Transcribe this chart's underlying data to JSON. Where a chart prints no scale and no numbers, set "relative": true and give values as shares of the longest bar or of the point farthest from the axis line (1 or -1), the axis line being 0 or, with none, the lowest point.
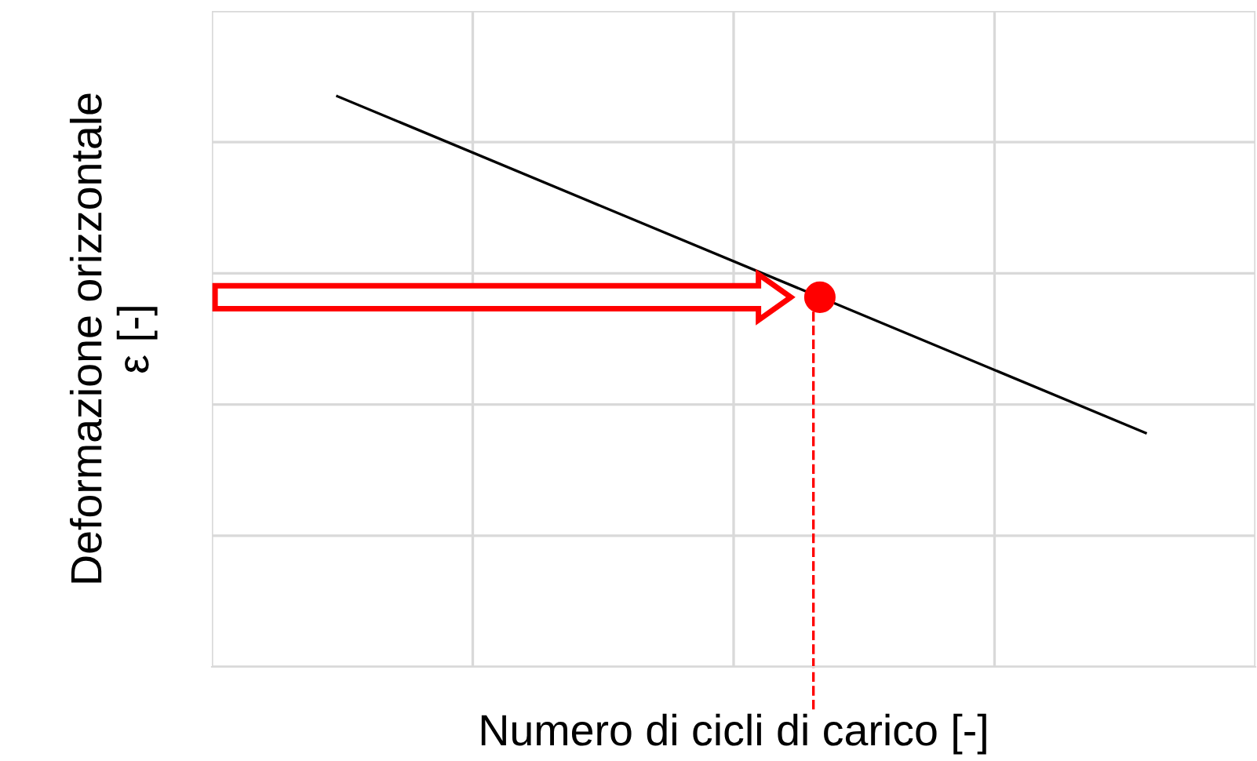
{
  "chart_data": {
    "type": "line",
    "relative": true,
    "xlabel": "Numero di cicli di carico [-]",
    "ylabel": "Deformazione orizzontale\nε [-]",
    "categories": [
      null,
      null
    ],
    "grid": true,
    "marker": "none",
    "line_style": "solid",
    "tick_labels": false,
    "series": [
      {
        "color": "#000000",
        "values": [
          1,
          0.41
        ]
      }
    ]
  }
}
